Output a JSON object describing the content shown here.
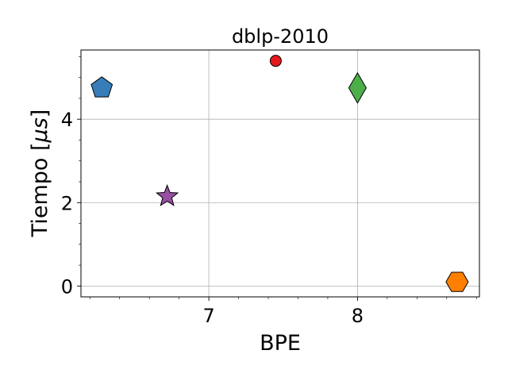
{
  "chart_data": {
    "type": "scatter",
    "title": "dblp-2010",
    "xlabel": "BPE",
    "ylabel_prefix": "Tiempo [",
    "ylabel_mu": "μ",
    "ylabel_s": "s",
    "ylabel_suffix": "]",
    "xlim": [
      6.14,
      8.82
    ],
    "ylim": [
      -0.26,
      5.66
    ],
    "xticks": [
      7,
      8
    ],
    "xtick_labels": [
      "7",
      "8"
    ],
    "yticks": [
      0,
      2,
      4
    ],
    "ytick_labels": [
      "0",
      "2",
      "4"
    ],
    "grid": true,
    "points": [
      {
        "x": 6.28,
        "y": 4.75,
        "marker": "pentagon",
        "color": "#377eb8"
      },
      {
        "x": 6.72,
        "y": 2.15,
        "marker": "star",
        "color": "#984ea3"
      },
      {
        "x": 7.45,
        "y": 5.4,
        "marker": "circle",
        "color": "#e41a1c"
      },
      {
        "x": 8.0,
        "y": 4.75,
        "marker": "diamond",
        "color": "#4daf4a"
      },
      {
        "x": 8.67,
        "y": 0.1,
        "marker": "hexagon",
        "color": "#ff7f00"
      }
    ]
  }
}
